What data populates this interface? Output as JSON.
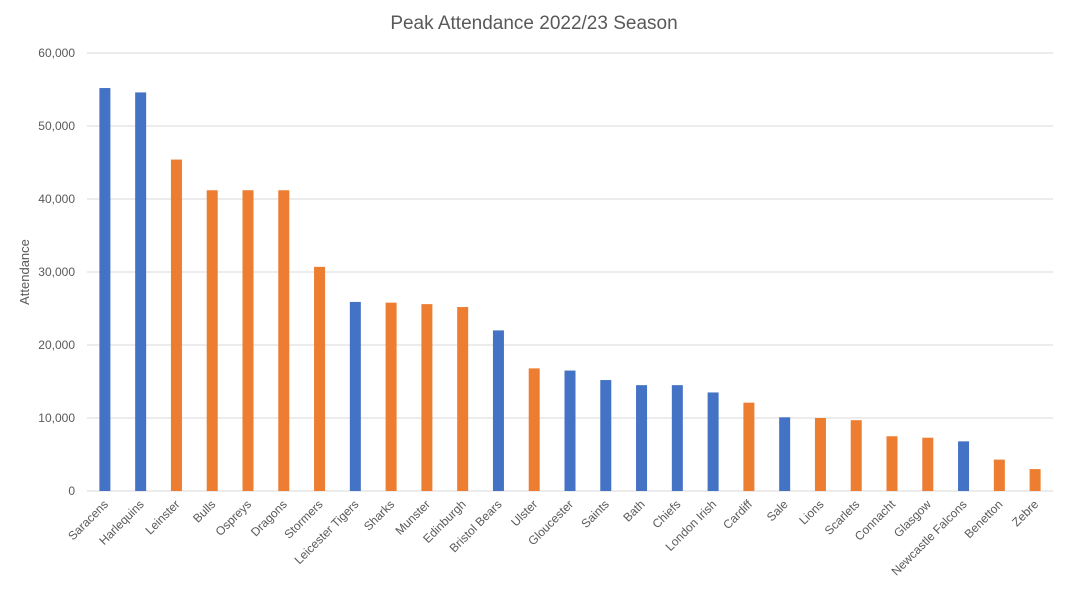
{
  "chart_data": {
    "type": "bar",
    "title": "Peak Attendance 2022/23 Season",
    "xlabel": "",
    "ylabel": "Attendance",
    "ylim": [
      0,
      60000
    ],
    "yticks": [
      "0",
      "10,000",
      "20,000",
      "30,000",
      "40,000",
      "50,000",
      "60,000"
    ],
    "grid": true,
    "legend": "none",
    "colors": {
      "blue": "#4472c4",
      "orange": "#ed7d31"
    },
    "categories": [
      "Saracens",
      "Harlequins",
      "Leinster",
      "Bulls",
      "Ospreys",
      "Dragons",
      "Stormers",
      "Leicester Tigers",
      "Sharks",
      "Munster",
      "Edinburgh",
      "Bristol Bears",
      "Ulster",
      "Gloucester",
      "Saints",
      "Bath",
      "Chiefs",
      "London Irish",
      "Cardiff",
      "Sale",
      "Lions",
      "Scarlets",
      "Connacht",
      "Glasgow",
      "Newcastle Falcons",
      "Benetton",
      "Zebre"
    ],
    "values": [
      55200,
      54600,
      45400,
      41200,
      41200,
      41200,
      30700,
      25900,
      25800,
      25600,
      25200,
      22000,
      16800,
      16500,
      15200,
      14500,
      14500,
      13500,
      12100,
      10100,
      10000,
      9700,
      7500,
      7300,
      6800,
      4300,
      3000
    ],
    "bar_colors": [
      "blue",
      "blue",
      "orange",
      "orange",
      "orange",
      "orange",
      "orange",
      "blue",
      "orange",
      "orange",
      "orange",
      "blue",
      "orange",
      "blue",
      "blue",
      "blue",
      "blue",
      "blue",
      "orange",
      "blue",
      "orange",
      "orange",
      "orange",
      "orange",
      "blue",
      "orange",
      "orange"
    ]
  }
}
